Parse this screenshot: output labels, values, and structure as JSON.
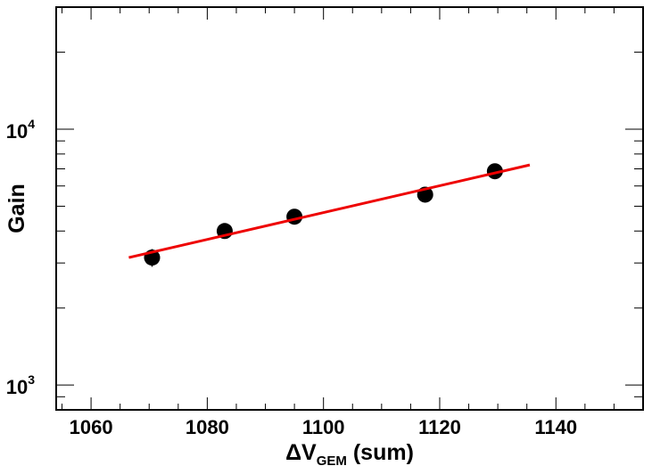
{
  "chart_data": {
    "type": "scatter",
    "title": "",
    "xlabel_main": "ΔV",
    "xlabel_sub": "GEM",
    "xlabel_tail": " (sum)",
    "ylabel": "Gain",
    "xlim": [
      1054,
      1155
    ],
    "ylim": [
      800,
      30000
    ],
    "yscale": "log",
    "grid": false,
    "x_ticks": [
      1060,
      1080,
      1100,
      1120,
      1140
    ],
    "x_tick_labels": [
      "1060",
      "1080",
      "1100",
      "1120",
      "1140"
    ],
    "y_ticks": [
      1000,
      10000
    ],
    "y_tick_labels": [
      {
        "base": "10",
        "exp": "3"
      },
      {
        "base": "10",
        "exp": "4"
      }
    ],
    "series": [
      {
        "kind": "points",
        "color": "#000000",
        "x": [
          1070.5,
          1083,
          1095,
          1117.5,
          1129.5
        ],
        "y": [
          3150,
          4000,
          4550,
          5550,
          6850
        ],
        "yerr": [
          250,
          250,
          200,
          200,
          200
        ]
      },
      {
        "kind": "fit",
        "color": "#ee0000",
        "x": [
          1066.5,
          1135.5
        ],
        "y": [
          3150,
          7250
        ]
      }
    ]
  }
}
